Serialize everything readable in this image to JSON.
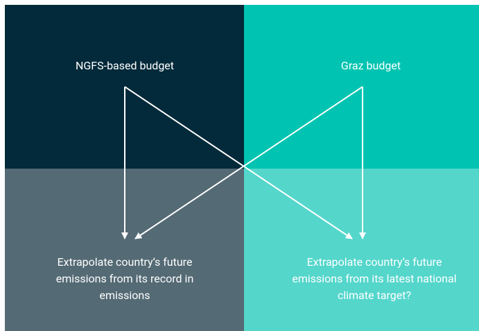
{
  "nodes": [
    {
      "label": "NGFS-based budget"
    },
    {
      "label": "Graz budget"
    },
    {
      "label": "Extrapolate country’s future emissions from its record in emissions"
    },
    {
      "label": "Extrapolate country’s future emissions from its latest national climate target?"
    }
  ]
}
